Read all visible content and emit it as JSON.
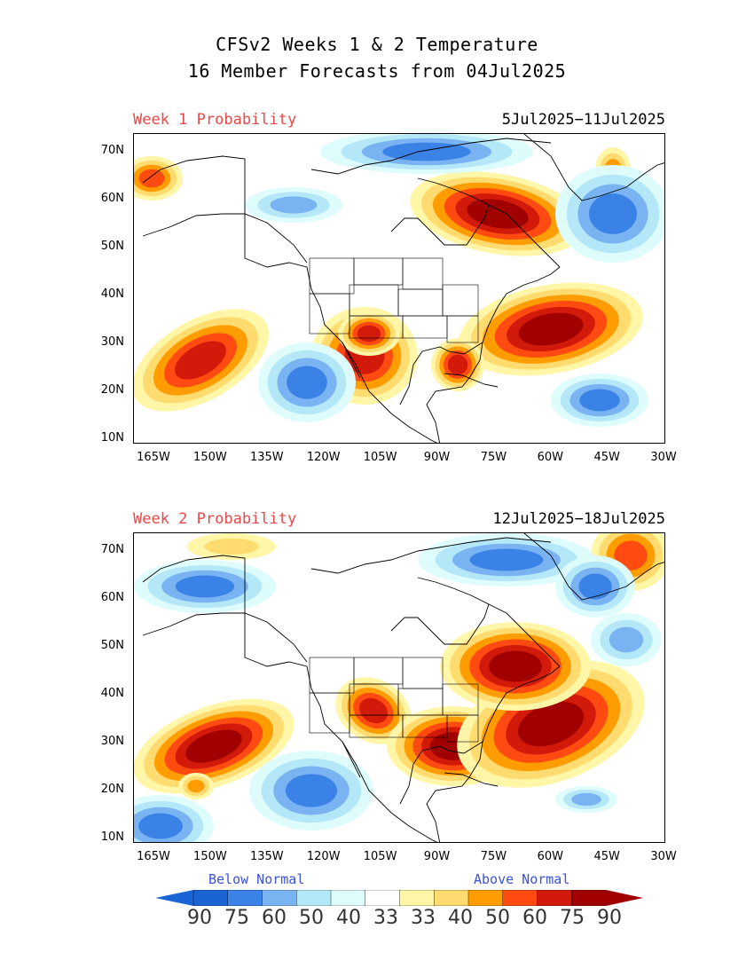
{
  "title_line1": "CFSv2 Weeks 1 & 2 Temperature",
  "title_line2": "16 Member Forecasts from 04Jul2025",
  "panels": [
    {
      "label": "Week 1 Probability",
      "dates": "5Jul2025−11Jul2025"
    },
    {
      "label": "Week 2 Probability",
      "dates": "12Jul2025−18Jul2025"
    }
  ],
  "lat_ticks": [
    "70N",
    "60N",
    "50N",
    "40N",
    "30N",
    "20N",
    "10N"
  ],
  "lon_ticks": [
    "165W",
    "150W",
    "135W",
    "120W",
    "105W",
    "90W",
    "75W",
    "60W",
    "45W",
    "30W"
  ],
  "legend": {
    "below_label": "Below Normal",
    "above_label": "Above Normal",
    "values": [
      "90",
      "75",
      "60",
      "50",
      "40",
      "33",
      "33",
      "40",
      "50",
      "60",
      "75",
      "90"
    ],
    "colors": [
      "#1a64d6",
      "#3a82e6",
      "#79b3f2",
      "#b4e8f8",
      "#dffcfc",
      "#ffffff",
      "#fff6a8",
      "#ffdb70",
      "#ff9d00",
      "#ff4a12",
      "#d21a0a",
      "#a00000"
    ]
  }
}
